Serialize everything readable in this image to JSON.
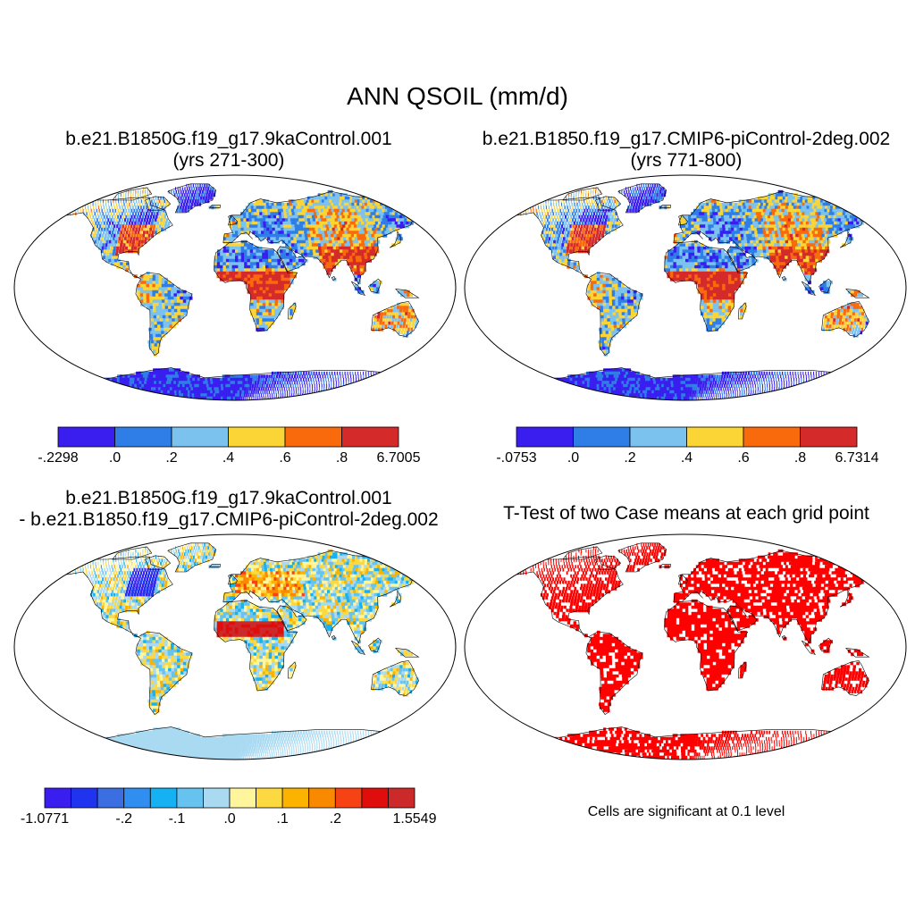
{
  "title": "ANN QSOIL (mm/d)",
  "colors": {
    "main_scale": [
      "#3a1ef0",
      "#2f7de6",
      "#7cc2ef",
      "#fbd436",
      "#f96a0c",
      "#d42a2a"
    ],
    "diff_scale": [
      "#3a1ef0",
      "#2033ee",
      "#3b6ee0",
      "#2f8ef0",
      "#16b1f2",
      "#66c2ef",
      "#a9daf2",
      "#fff59d",
      "#fcd940",
      "#fbb300",
      "#f98a00",
      "#f74214",
      "#e00d0d",
      "#cc2a2a"
    ],
    "significant": "#ff0000",
    "land_outline": "#000000"
  },
  "panels": [
    {
      "title_line1": "b.e21.B1850G.f19_g17.9kaControl.001",
      "title_line2": "(yrs 271-300)",
      "colorbar": [
        "-.2298",
        ".0",
        ".2",
        ".4",
        ".6",
        ".8",
        "6.7005"
      ]
    },
    {
      "title_line1": "b.e21.B1850.f19_g17.CMIP6-piControl-2deg.002",
      "title_line2": "(yrs 771-800)",
      "colorbar": [
        "-.0753",
        ".0",
        ".2",
        ".4",
        ".6",
        ".8",
        "6.7314"
      ]
    },
    {
      "title_line1": "b.e21.B1850G.f19_g17.9kaControl.001",
      "title_line2": "- b.e21.B1850.f19_g17.CMIP6-piControl-2deg.002",
      "colorbar": [
        "-1.0771",
        "-.2",
        "-.1",
        ".0",
        ".1",
        ".2",
        "1.5549"
      ]
    },
    {
      "title_line1": "T-Test of two Case means at each grid point",
      "note": "Cells are significant at 0.1 level"
    }
  ]
}
